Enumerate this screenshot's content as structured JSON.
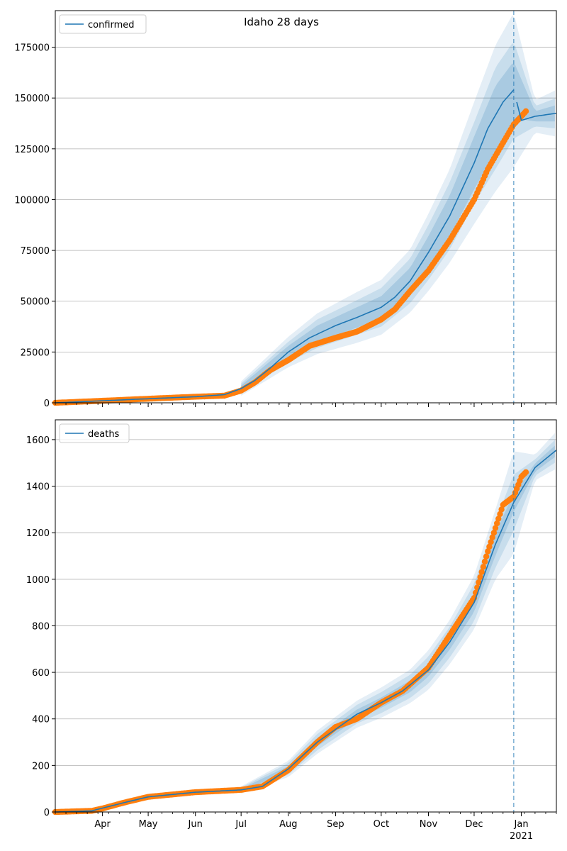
{
  "figure": {
    "title": "Idaho 28 days"
  },
  "chart_data": [
    {
      "type": "line",
      "title": "Idaho 28 days",
      "legend": {
        "label": "confirmed",
        "placement": "top-left"
      },
      "grid": "y",
      "ylim": [
        0,
        193000
      ],
      "yticks": [
        0,
        25000,
        50000,
        75000,
        100000,
        125000,
        150000,
        175000
      ],
      "xlim": [
        "2020-03-01",
        "2021-01-24"
      ],
      "forecast_start": "2020-12-27",
      "colors": {
        "model": "#1f77b4",
        "observed": "#ff7f0e",
        "bands": "#1f77b4"
      },
      "model_series": {
        "name": "confirmed",
        "x": [
          "2020-03-01",
          "2020-04-01",
          "2020-05-01",
          "2020-06-01",
          "2020-06-20",
          "2020-07-01",
          "2020-07-10",
          "2020-07-20",
          "2020-08-01",
          "2020-08-15",
          "2020-09-01",
          "2020-09-15",
          "2020-10-01",
          "2020-10-10",
          "2020-10-20",
          "2020-11-01",
          "2020-11-15",
          "2020-12-01",
          "2020-12-10",
          "2020-12-20",
          "2020-12-27",
          "2021-01-01",
          "2021-01-10",
          "2021-01-24"
        ],
        "values": [
          0,
          1000,
          2000,
          3000,
          4000,
          7000,
          11000,
          17000,
          25000,
          32000,
          38000,
          42000,
          47000,
          52000,
          60000,
          74000,
          92000,
          118000,
          135000,
          148000,
          154000,
          139000,
          141000,
          142500
        ]
      },
      "observed_series": {
        "name": "observed",
        "x": [
          "2020-03-01",
          "2020-04-01",
          "2020-05-01",
          "2020-06-01",
          "2020-06-20",
          "2020-07-01",
          "2020-07-10",
          "2020-07-20",
          "2020-08-01",
          "2020-08-15",
          "2020-09-01",
          "2020-09-15",
          "2020-10-01",
          "2020-10-10",
          "2020-10-20",
          "2020-11-01",
          "2020-11-15",
          "2020-12-01",
          "2020-12-10",
          "2020-12-20",
          "2020-12-27",
          "2021-01-01",
          "2021-01-04"
        ],
        "values": [
          0,
          1000,
          2000,
          3000,
          3500,
          6000,
          10000,
          16000,
          21000,
          28000,
          32000,
          35000,
          41000,
          46000,
          55000,
          65000,
          80000,
          100000,
          115000,
          128000,
          137000,
          141000,
          143500
        ]
      },
      "bands": {
        "x": [
          "2020-07-01",
          "2020-08-01",
          "2020-08-20",
          "2020-09-15",
          "2020-10-01",
          "2020-10-20",
          "2020-11-01",
          "2020-11-15",
          "2020-12-01",
          "2020-12-15",
          "2020-12-27",
          "2021-01-10",
          "2021-01-24"
        ],
        "center": [
          7000,
          25000,
          34000,
          42000,
          47000,
          60000,
          74000,
          92000,
          118000,
          140000,
          154000,
          141000,
          142500
        ],
        "inner_halfwidth": [
          1500,
          3000,
          4000,
          5000,
          5500,
          6500,
          8000,
          10000,
          13000,
          16000,
          14000,
          2500,
          4000
        ],
        "middle_halfwidth": [
          2500,
          5000,
          7000,
          8500,
          9500,
          11000,
          13500,
          16500,
          20000,
          25000,
          24000,
          5000,
          7500
        ],
        "outer_halfwidth": [
          3500,
          7500,
          10000,
          12500,
          13500,
          15500,
          19000,
          23000,
          30000,
          36000,
          38000,
          8000,
          11500
        ]
      }
    },
    {
      "type": "line",
      "legend": {
        "label": "deaths",
        "placement": "top-left"
      },
      "grid": "y",
      "ylim": [
        0,
        1685
      ],
      "yticks": [
        0,
        200,
        400,
        600,
        800,
        1000,
        1200,
        1400,
        1600
      ],
      "xlim": [
        "2020-03-01",
        "2021-01-24"
      ],
      "forecast_start": "2020-12-27",
      "colors": {
        "model": "#1f77b4",
        "observed": "#ff7f0e",
        "bands": "#1f77b4"
      },
      "model_series": {
        "name": "deaths",
        "x": [
          "2020-03-01",
          "2020-03-25",
          "2020-04-15",
          "2020-05-01",
          "2020-06-01",
          "2020-07-01",
          "2020-07-15",
          "2020-08-01",
          "2020-08-20",
          "2020-09-01",
          "2020-09-15",
          "2020-10-01",
          "2020-10-15",
          "2020-11-01",
          "2020-11-15",
          "2020-12-01",
          "2020-12-15",
          "2020-12-27",
          "2021-01-10",
          "2021-01-24"
        ],
        "values": [
          0,
          5,
          40,
          65,
          85,
          95,
          110,
          185,
          300,
          355,
          420,
          470,
          520,
          610,
          730,
          900,
          1150,
          1330,
          1480,
          1555
        ]
      },
      "observed_series": {
        "name": "observed",
        "x": [
          "2020-03-01",
          "2020-03-25",
          "2020-04-01",
          "2020-04-15",
          "2020-05-01",
          "2020-06-01",
          "2020-07-01",
          "2020-07-15",
          "2020-08-01",
          "2020-08-20",
          "2020-09-01",
          "2020-09-15",
          "2020-10-01",
          "2020-10-15",
          "2020-11-01",
          "2020-11-15",
          "2020-12-01",
          "2020-12-10",
          "2020-12-20",
          "2020-12-27",
          "2021-01-01",
          "2021-01-04"
        ],
        "values": [
          0,
          5,
          15,
          40,
          65,
          85,
          95,
          110,
          180,
          300,
          365,
          400,
          470,
          520,
          620,
          760,
          920,
          1120,
          1320,
          1355,
          1440,
          1460
        ]
      },
      "bands": {
        "x": [
          "2020-07-01",
          "2020-08-01",
          "2020-08-20",
          "2020-09-15",
          "2020-10-01",
          "2020-10-20",
          "2020-11-01",
          "2020-11-15",
          "2020-12-01",
          "2020-12-15",
          "2020-12-27",
          "2021-01-10",
          "2021-01-24"
        ],
        "center": [
          95,
          185,
          300,
          420,
          470,
          540,
          610,
          730,
          900,
          1150,
          1330,
          1480,
          1555
        ],
        "inner_halfwidth": [
          5,
          12,
          18,
          20,
          22,
          25,
          28,
          32,
          40,
          48,
          40,
          18,
          25
        ],
        "middle_halfwidth": [
          10,
          25,
          35,
          40,
          45,
          50,
          58,
          66,
          80,
          100,
          120,
          35,
          50
        ],
        "outer_halfwidth": [
          15,
          35,
          50,
          58,
          65,
          72,
          85,
          95,
          115,
          150,
          220,
          55,
          80
        ]
      }
    }
  ],
  "xaxis": {
    "month_ticks": [
      "2020-04-01",
      "2020-05-01",
      "2020-06-01",
      "2020-07-01",
      "2020-08-01",
      "2020-09-01",
      "2020-10-01",
      "2020-11-01",
      "2020-12-01",
      "2021-01-01"
    ],
    "month_labels": [
      "Apr",
      "May",
      "Jun",
      "Jul",
      "Aug",
      "Sep",
      "Oct",
      "Nov",
      "Dec",
      "Jan"
    ],
    "year_label": "2021"
  }
}
